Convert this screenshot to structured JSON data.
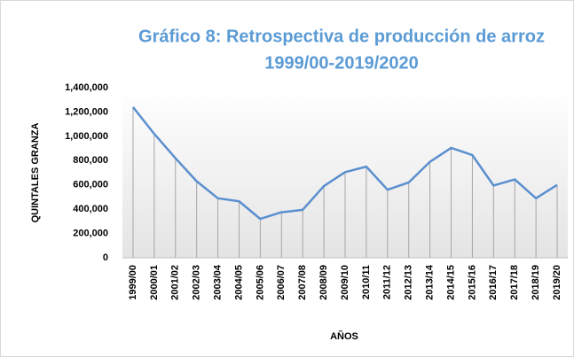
{
  "chart_data": {
    "type": "line",
    "title": [
      "Gráfico 8: Retrospectiva de producción de arroz",
      "1999/00-2019/2020"
    ],
    "y_axis_label": "QUINTALES GRANZA",
    "x_axis_label": "AÑOS",
    "categories": [
      "1999/00",
      "2000/01",
      "2001/02",
      "2002/03",
      "2003/04",
      "2004/05",
      "2005/06",
      "2006/07",
      "2007/08",
      "2008/09",
      "2009/10",
      "2010/11",
      "2011/12",
      "2012/13",
      "2013/14",
      "2014/15",
      "2015/16",
      "2016/17",
      "2017/18",
      "2018/19",
      "2019/20"
    ],
    "values": [
      1240000,
      1020000,
      820000,
      630000,
      490000,
      465000,
      320000,
      375000,
      395000,
      590000,
      705000,
      750000,
      560000,
      620000,
      790000,
      905000,
      845000,
      595000,
      645000,
      490000,
      600000
    ],
    "color": "#5b8fcf",
    "drop_lines": true,
    "ylim": [
      0,
      1400000
    ],
    "yticks": [
      0,
      {
        "value": 200000,
        "label": "200,000"
      },
      {
        "value": 400000,
        "label": "400,000"
      },
      {
        "value": 600000,
        "label": "600,000"
      },
      {
        "value": 800000,
        "label": "800,000"
      },
      {
        "value": 1000000,
        "label": "1,000,000"
      },
      {
        "value": 1200000,
        "label": "1,200,000"
      },
      {
        "value": 1400000,
        "label": "1,400,000"
      }
    ]
  }
}
